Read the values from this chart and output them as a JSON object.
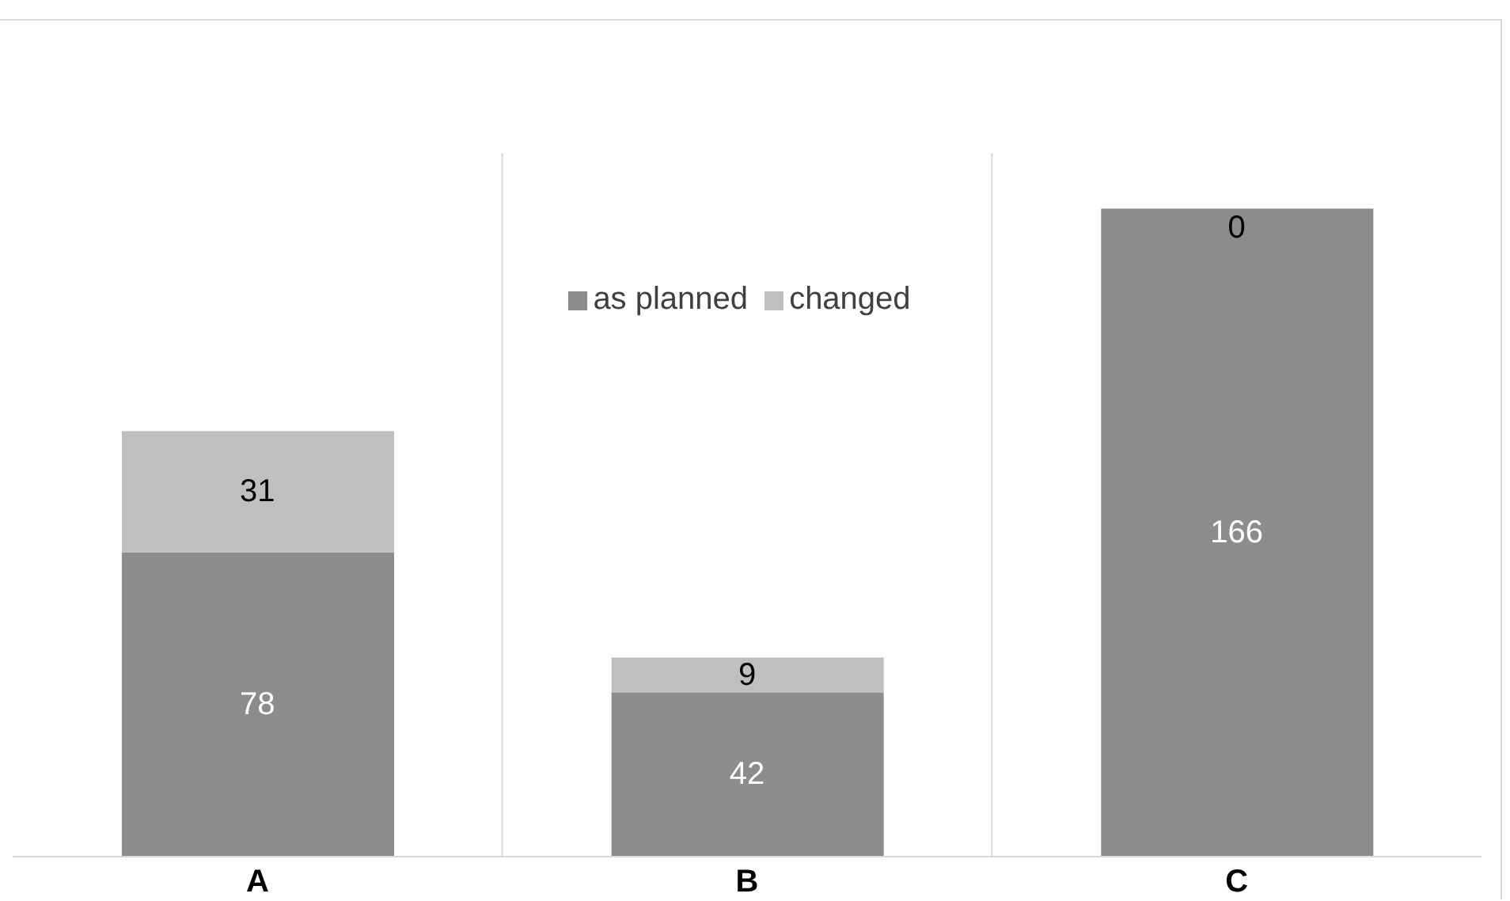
{
  "chart_data": {
    "type": "bar",
    "stacked": true,
    "categories": [
      "A",
      "B",
      "C"
    ],
    "series": [
      {
        "name": "as planned",
        "color": "#8c8c8c",
        "values": [
          78,
          42,
          166
        ]
      },
      {
        "name": "changed",
        "color": "#bfbfbf",
        "values": [
          31,
          9,
          0
        ]
      }
    ],
    "data_labels": true,
    "legend": "top",
    "grid": "x"
  }
}
